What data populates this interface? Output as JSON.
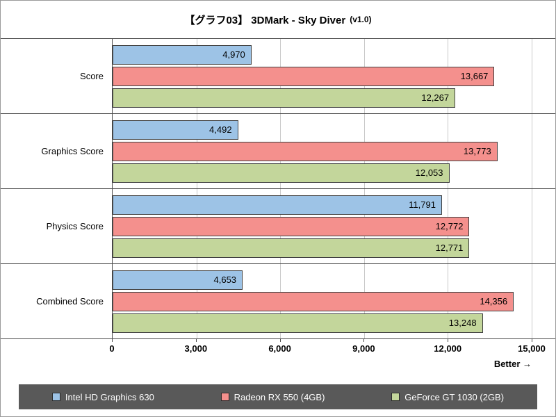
{
  "title": {
    "main": "【グラフ03】 3DMark - Sky Diver",
    "suffix": "(v1.0)"
  },
  "better_label": "Better →",
  "colors": {
    "grid": "#c9c9c9",
    "axis": "#4a4a4a",
    "legend_bg": "#595959"
  },
  "chart_data": {
    "type": "bar",
    "orientation": "horizontal",
    "title": "【グラフ03】 3DMark - Sky Diver (v1.0)",
    "categories": [
      "Score",
      "Graphics Score",
      "Physics Score",
      "Combined Score"
    ],
    "series": [
      {
        "name": "Intel HD Graphics 630",
        "color": "#9DC3E6",
        "values": [
          4970,
          4492,
          11791,
          4653
        ]
      },
      {
        "name": "Radeon RX 550 (4GB)",
        "color": "#F4908D",
        "values": [
          13667,
          13773,
          12772,
          14356
        ]
      },
      {
        "name": "GeForce GT 1030 (2GB)",
        "color": "#C3D69B",
        "values": [
          12267,
          12053,
          12771,
          13248
        ]
      }
    ],
    "xlim": [
      0,
      15000
    ],
    "xticks": [
      0,
      3000,
      6000,
      9000,
      12000,
      15000
    ],
    "xtick_labels": [
      "0",
      "3,000",
      "6,000",
      "9,000",
      "12,000",
      "15,000"
    ],
    "grid": true,
    "legend_position": "bottom",
    "annotation": "Better →"
  }
}
